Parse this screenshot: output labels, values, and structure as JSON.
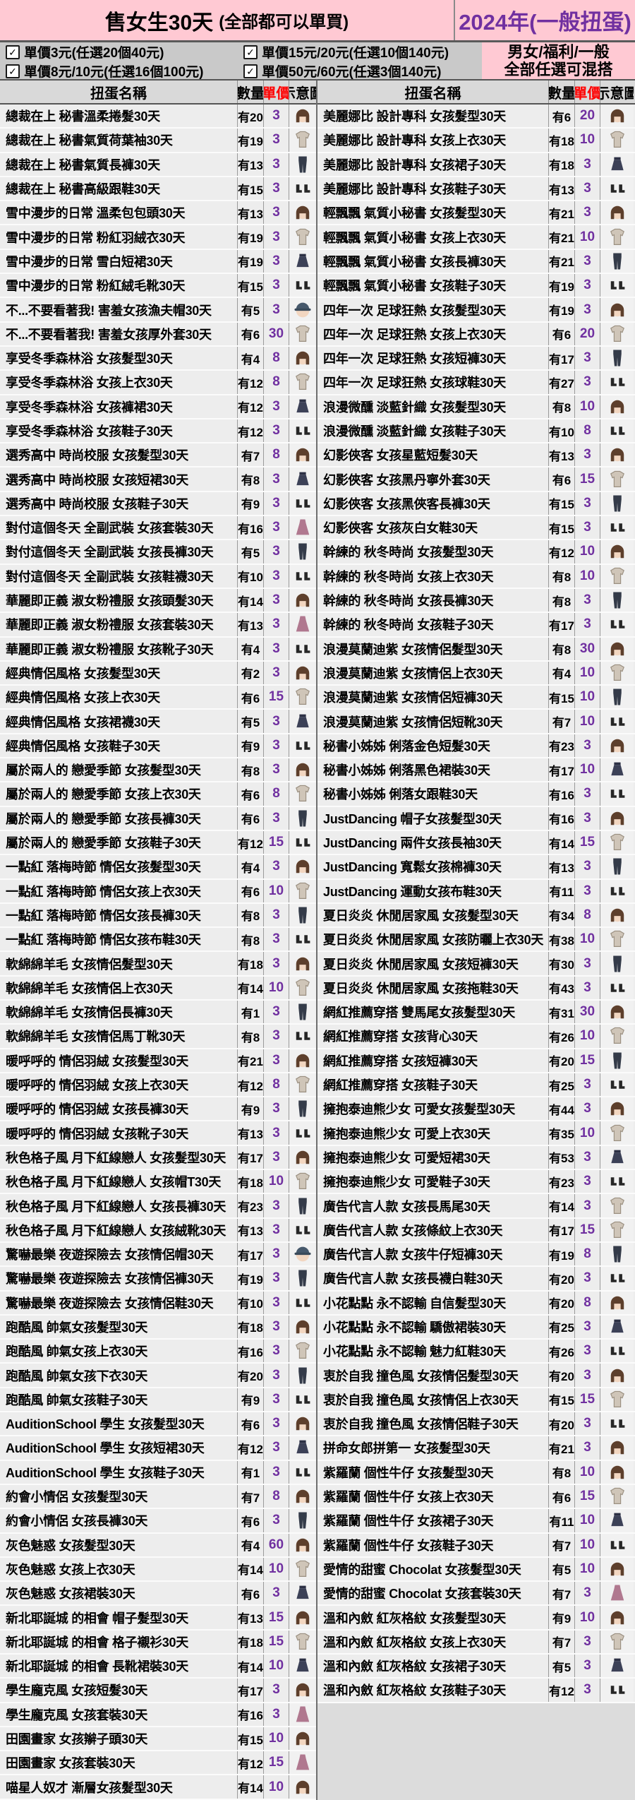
{
  "header": {
    "title_main": "售女生30天",
    "title_note": "(全部都可以單買)",
    "year_label": "2024年(一般扭蛋)"
  },
  "filters": {
    "options": [
      "單價3元(任選20個40元)",
      "單價15元/20元(任選10個140元)",
      "單價8元/10元(任選16個100元)",
      "單價50元/60元(任選3個140元)"
    ],
    "mix_line1": "男女/福利/一般",
    "mix_line2": "全部任選可混搭"
  },
  "colors": {
    "pink": "#ffc9d3",
    "purple": "#7030a0",
    "red": "#ff0000",
    "band_gray": "#c9c9c9",
    "header_gray": "#d9d9d9",
    "row_gray": "#ededed"
  },
  "table": {
    "columns": [
      "扭蛋名稱",
      "數量",
      "單價",
      "示意圖"
    ],
    "left_rows": [
      [
        "總裁在上 秘書溫柔捲髮30天",
        "有20",
        "3"
      ],
      [
        "總裁在上 秘書氣質荷葉袖30天",
        "有19",
        "3"
      ],
      [
        "總裁在上 秘書氣質長褲30天",
        "有13",
        "3"
      ],
      [
        "總裁在上 秘書高級跟鞋30天",
        "有15",
        "3"
      ],
      [
        "雪中漫步的日常 溫柔包包頭30天",
        "有13",
        "3"
      ],
      [
        "雪中漫步的日常 粉紅羽絨衣30天",
        "有19",
        "3"
      ],
      [
        "雪中漫步的日常 雪白短裙30天",
        "有19",
        "3"
      ],
      [
        "雪中漫步的日常 粉紅絨毛靴30天",
        "有15",
        "3"
      ],
      [
        "不...不要看著我! 害羞女孩漁夫帽30天",
        "有5",
        "3"
      ],
      [
        "不...不要看著我! 害羞女孩厚外套30天",
        "有6",
        "30"
      ],
      [
        "享受冬季森林浴 女孩髮型30天",
        "有4",
        "8"
      ],
      [
        "享受冬季森林浴 女孩上衣30天",
        "有12",
        "8"
      ],
      [
        "享受冬季森林浴 女孩褲裙30天",
        "有12",
        "3"
      ],
      [
        "享受冬季森林浴 女孩鞋子30天",
        "有12",
        "3"
      ],
      [
        "選秀高中 時尚校服 女孩髮型30天",
        "有7",
        "8"
      ],
      [
        "選秀高中 時尚校服 女孩短裙30天",
        "有8",
        "3"
      ],
      [
        "選秀高中 時尚校服 女孩鞋子30天",
        "有9",
        "3"
      ],
      [
        "對付這個冬天 全副武裝 女孩套裝30天",
        "有16",
        "3"
      ],
      [
        "對付這個冬天 全副武裝 女孩長褲30天",
        "有5",
        "3"
      ],
      [
        "對付這個冬天 全副武裝 女孩鞋襪30天",
        "有10",
        "3"
      ],
      [
        "華麗即正義 淑女粉禮服 女孩頭髮30天",
        "有14",
        "3"
      ],
      [
        "華麗即正義 淑女粉禮服 女孩套裝30天",
        "有13",
        "3"
      ],
      [
        "華麗即正義 淑女粉禮服 女孩靴子30天",
        "有4",
        "3"
      ],
      [
        "經典情侶風格 女孩髮型30天",
        "有2",
        "3"
      ],
      [
        "經典情侶風格 女孩上衣30天",
        "有6",
        "15"
      ],
      [
        "經典情侶風格 女孩裙襪30天",
        "有5",
        "3"
      ],
      [
        "經典情侶風格 女孩鞋子30天",
        "有9",
        "3"
      ],
      [
        "屬於兩人的 戀愛季節 女孩髮型30天",
        "有8",
        "3"
      ],
      [
        "屬於兩人的 戀愛季節 女孩上衣30天",
        "有6",
        "8"
      ],
      [
        "屬於兩人的 戀愛季節 女孩長褲30天",
        "有6",
        "3"
      ],
      [
        "屬於兩人的 戀愛季節 女孩鞋子30天",
        "有12",
        "15"
      ],
      [
        "一點紅 落梅時節 情侶女孩髮型30天",
        "有4",
        "3"
      ],
      [
        "一點紅 落梅時節 情侶女孩上衣30天",
        "有6",
        "10"
      ],
      [
        "一點紅 落梅時節 情侶女孩長褲30天",
        "有8",
        "3"
      ],
      [
        "一點紅 落梅時節 情侶女孩布鞋30天",
        "有8",
        "3"
      ],
      [
        "軟綿綿羊毛 女孩情侶髮型30天",
        "有18",
        "3"
      ],
      [
        "軟綿綿羊毛 女孩情侶上衣30天",
        "有14",
        "10"
      ],
      [
        "軟綿綿羊毛 女孩情侶長褲30天",
        "有1",
        "3"
      ],
      [
        "軟綿綿羊毛 女孩情侶馬丁靴30天",
        "有8",
        "3"
      ],
      [
        "暖呼呼的 情侶羽絨 女孩髮型30天",
        "有21",
        "3"
      ],
      [
        "暖呼呼的 情侶羽絨 女孩上衣30天",
        "有12",
        "8"
      ],
      [
        "暖呼呼的 情侶羽絨 女孩長褲30天",
        "有9",
        "3"
      ],
      [
        "暖呼呼的 情侶羽絨 女孩靴子30天",
        "有13",
        "3"
      ],
      [
        "秋色格子風 月下紅線戀人 女孩髮型30天",
        "有17",
        "3"
      ],
      [
        "秋色格子風 月下紅線戀人 女孩帽T30天",
        "有18",
        "10"
      ],
      [
        "秋色格子風 月下紅線戀人 女孩長褲30天",
        "有23",
        "3"
      ],
      [
        "秋色格子風 月下紅線戀人 女孩絨靴30天",
        "有13",
        "3"
      ],
      [
        "驚嚇最樂 夜遊探險去 女孩情侶帽30天",
        "有17",
        "3"
      ],
      [
        "驚嚇最樂 夜遊探險去 女孩情侶褲30天",
        "有19",
        "3"
      ],
      [
        "驚嚇最樂 夜遊探險去 女孩情侶鞋30天",
        "有10",
        "3"
      ],
      [
        "跑酷風 帥氣女孩髮型30天",
        "有18",
        "3"
      ],
      [
        "跑酷風 帥氣女孩上衣30天",
        "有16",
        "3"
      ],
      [
        "跑酷風 帥氣女孩下衣30天",
        "有20",
        "3"
      ],
      [
        "跑酷風 帥氣女孩鞋子30天",
        "有9",
        "3"
      ],
      [
        "AuditionSchool 學生 女孩髮型30天",
        "有6",
        "3"
      ],
      [
        "AuditionSchool 學生 女孩短裙30天",
        "有12",
        "3"
      ],
      [
        "AuditionSchool 學生 女孩鞋子30天",
        "有1",
        "3"
      ],
      [
        "約會小情侶 女孩髮型30天",
        "有7",
        "8"
      ],
      [
        "約會小情侶 女孩長褲30天",
        "有6",
        "3"
      ],
      [
        "灰色魅惑 女孩髮型30天",
        "有4",
        "60"
      ],
      [
        "灰色魅惑 女孩上衣30天",
        "有14",
        "10"
      ],
      [
        "灰色魅惑 女孩裙裝30天",
        "有6",
        "3"
      ],
      [
        "新北耶誕城 的相會 帽子髮型30天",
        "有13",
        "15"
      ],
      [
        "新北耶誕城 的相會 格子襯衫30天",
        "有18",
        "15"
      ],
      [
        "新北耶誕城 的相會 長靴裙裝30天",
        "有14",
        "10"
      ],
      [
        "學生龐克風 女孩短髮30天",
        "有17",
        "3"
      ],
      [
        "學生龐克風 女孩套裝30天",
        "有16",
        "3"
      ],
      [
        "田園畫家 女孩辮子頭30天",
        "有15",
        "10"
      ],
      [
        "田園畫家 女孩套裝30天",
        "有12",
        "15"
      ],
      [
        "喵星人奴才 漸層女孩髮型30天",
        "有14",
        "10"
      ]
    ],
    "right_rows": [
      [
        "美麗娜比 設計專科 女孩髮型30天",
        "有6",
        "20"
      ],
      [
        "美麗娜比 設計專科 女孩上衣30天",
        "有18",
        "10"
      ],
      [
        "美麗娜比 設計專科 女孩裙子30天",
        "有18",
        "3"
      ],
      [
        "美麗娜比 設計專科 女孩鞋子30天",
        "有13",
        "3"
      ],
      [
        "輕飄飄 氣質小秘書 女孩髮型30天",
        "有21",
        "3"
      ],
      [
        "輕飄飄 氣質小秘書 女孩上衣30天",
        "有21",
        "10"
      ],
      [
        "輕飄飄 氣質小秘書 女孩長褲30天",
        "有21",
        "3"
      ],
      [
        "輕飄飄 氣質小秘書 女孩鞋子30天",
        "有19",
        "3"
      ],
      [
        "四年一次 足球狂熱 女孩髮型30天",
        "有19",
        "3"
      ],
      [
        "四年一次 足球狂熱 女孩上衣30天",
        "有6",
        "20"
      ],
      [
        "四年一次 足球狂熱 女孩短褲30天",
        "有17",
        "3"
      ],
      [
        "四年一次 足球狂熱 女孩球鞋30天",
        "有27",
        "3"
      ],
      [
        "浪漫微醺 淡藍針織 女孩髮型30天",
        "有8",
        "10"
      ],
      [
        "浪漫微醺 淡藍針織 女孩鞋子30天",
        "有10",
        "8"
      ],
      [
        "幻影俠客 女孩星藍短髮30天",
        "有13",
        "3"
      ],
      [
        "幻影俠客 女孩黑丹寧外套30天",
        "有6",
        "15"
      ],
      [
        "幻影俠客 女孩黑俠客長褲30天",
        "有15",
        "3"
      ],
      [
        "幻影俠客 女孩灰白女鞋30天",
        "有15",
        "3"
      ],
      [
        "幹練的 秋冬時尚 女孩髮型30天",
        "有12",
        "10"
      ],
      [
        "幹練的 秋冬時尚 女孩上衣30天",
        "有8",
        "10"
      ],
      [
        "幹練的 秋冬時尚 女孩長褲30天",
        "有8",
        "3"
      ],
      [
        "幹練的 秋冬時尚 女孩鞋子30天",
        "有17",
        "3"
      ],
      [
        "浪漫莫蘭迪紫 女孩情侶髮型30天",
        "有8",
        "30"
      ],
      [
        "浪漫莫蘭迪紫 女孩情侶上衣30天",
        "有4",
        "10"
      ],
      [
        "浪漫莫蘭迪紫 女孩情侶短褲30天",
        "有15",
        "10"
      ],
      [
        "浪漫莫蘭迪紫 女孩情侶短靴30天",
        "有7",
        "10"
      ],
      [
        "秘書小姊姊 俐落金色短髮30天",
        "有23",
        "3"
      ],
      [
        "秘書小姊姊 俐落黑色裙裝30天",
        "有17",
        "10"
      ],
      [
        "秘書小姊姊 俐落女跟鞋30天",
        "有16",
        "3"
      ],
      [
        "JustDancing 帽子女孩髮型30天",
        "有16",
        "3"
      ],
      [
        "JustDancing 兩件女孩長袖30天",
        "有14",
        "15"
      ],
      [
        "JustDancing 寬鬆女孩棉褲30天",
        "有13",
        "3"
      ],
      [
        "JustDancing 運動女孩布鞋30天",
        "有11",
        "3"
      ],
      [
        "夏日炎炎 休閒居家風 女孩髮型30天",
        "有34",
        "8"
      ],
      [
        "夏日炎炎 休閒居家風 女孩防曬上衣30天",
        "有38",
        "10"
      ],
      [
        "夏日炎炎 休閒居家風 女孩短褲30天",
        "有30",
        "3"
      ],
      [
        "夏日炎炎 休閒居家風 女孩拖鞋30天",
        "有43",
        "3"
      ],
      [
        "網紅推薦穿搭 雙馬尾女孩髮型30天",
        "有31",
        "30"
      ],
      [
        "網紅推薦穿搭 女孩背心30天",
        "有26",
        "10"
      ],
      [
        "網紅推薦穿搭 女孩短褲30天",
        "有20",
        "15"
      ],
      [
        "網紅推薦穿搭 女孩鞋子30天",
        "有25",
        "3"
      ],
      [
        "擁抱泰迪熊少女 可愛女孩髮型30天",
        "有44",
        "3"
      ],
      [
        "擁抱泰迪熊少女 可愛上衣30天",
        "有35",
        "10"
      ],
      [
        "擁抱泰迪熊少女 可愛短裙30天",
        "有53",
        "3"
      ],
      [
        "擁抱泰迪熊少女 可愛鞋子30天",
        "有23",
        "3"
      ],
      [
        "廣告代言人款 女孩長馬尾30天",
        "有14",
        "3"
      ],
      [
        "廣告代言人款 女孩條紋上衣30天",
        "有17",
        "15"
      ],
      [
        "廣告代言人款 女孩牛仔短褲30天",
        "有19",
        "8"
      ],
      [
        "廣告代言人款 女孩長襪白鞋30天",
        "有20",
        "3"
      ],
      [
        "小花點點 永不認輸 自信髮型30天",
        "有20",
        "8"
      ],
      [
        "小花點點 永不認輸 驕傲裙裝30天",
        "有25",
        "3"
      ],
      [
        "小花點點 永不認輸 魅力紅鞋30天",
        "有26",
        "3"
      ],
      [
        "衷於自我 撞色風 女孩情侶髮型30天",
        "有20",
        "3"
      ],
      [
        "衷於自我 撞色風 女孩情侶上衣30天",
        "有15",
        "15"
      ],
      [
        "衷於自我 撞色風 女孩情侶鞋子30天",
        "有20",
        "3"
      ],
      [
        "拼命女郎拼第一 女孩髮型30天",
        "有21",
        "3"
      ],
      [
        "紫羅蘭 個性牛仔 女孩髮型30天",
        "有8",
        "10"
      ],
      [
        "紫羅蘭 個性牛仔 女孩上衣30天",
        "有6",
        "15"
      ],
      [
        "紫羅蘭 個性牛仔 女孩裙子30天",
        "有11",
        "10"
      ],
      [
        "紫羅蘭 個性牛仔 女孩鞋子30天",
        "有7",
        "10"
      ],
      [
        "愛情的甜蜜 Chocolat 女孩髮型30天",
        "有5",
        "10"
      ],
      [
        "愛情的甜蜜 Chocolat 女孩套裝30天",
        "有7",
        "3"
      ],
      [
        "溫和內斂 紅灰格紋 女孩髮型30天",
        "有9",
        "10"
      ],
      [
        "溫和內斂 紅灰格紋 女孩上衣30天",
        "有7",
        "3"
      ],
      [
        "溫和內斂 紅灰格紋 女孩裙子30天",
        "有5",
        "3"
      ],
      [
        "溫和內斂 紅灰格紋 女孩鞋子30天",
        "有12",
        "3"
      ]
    ]
  }
}
